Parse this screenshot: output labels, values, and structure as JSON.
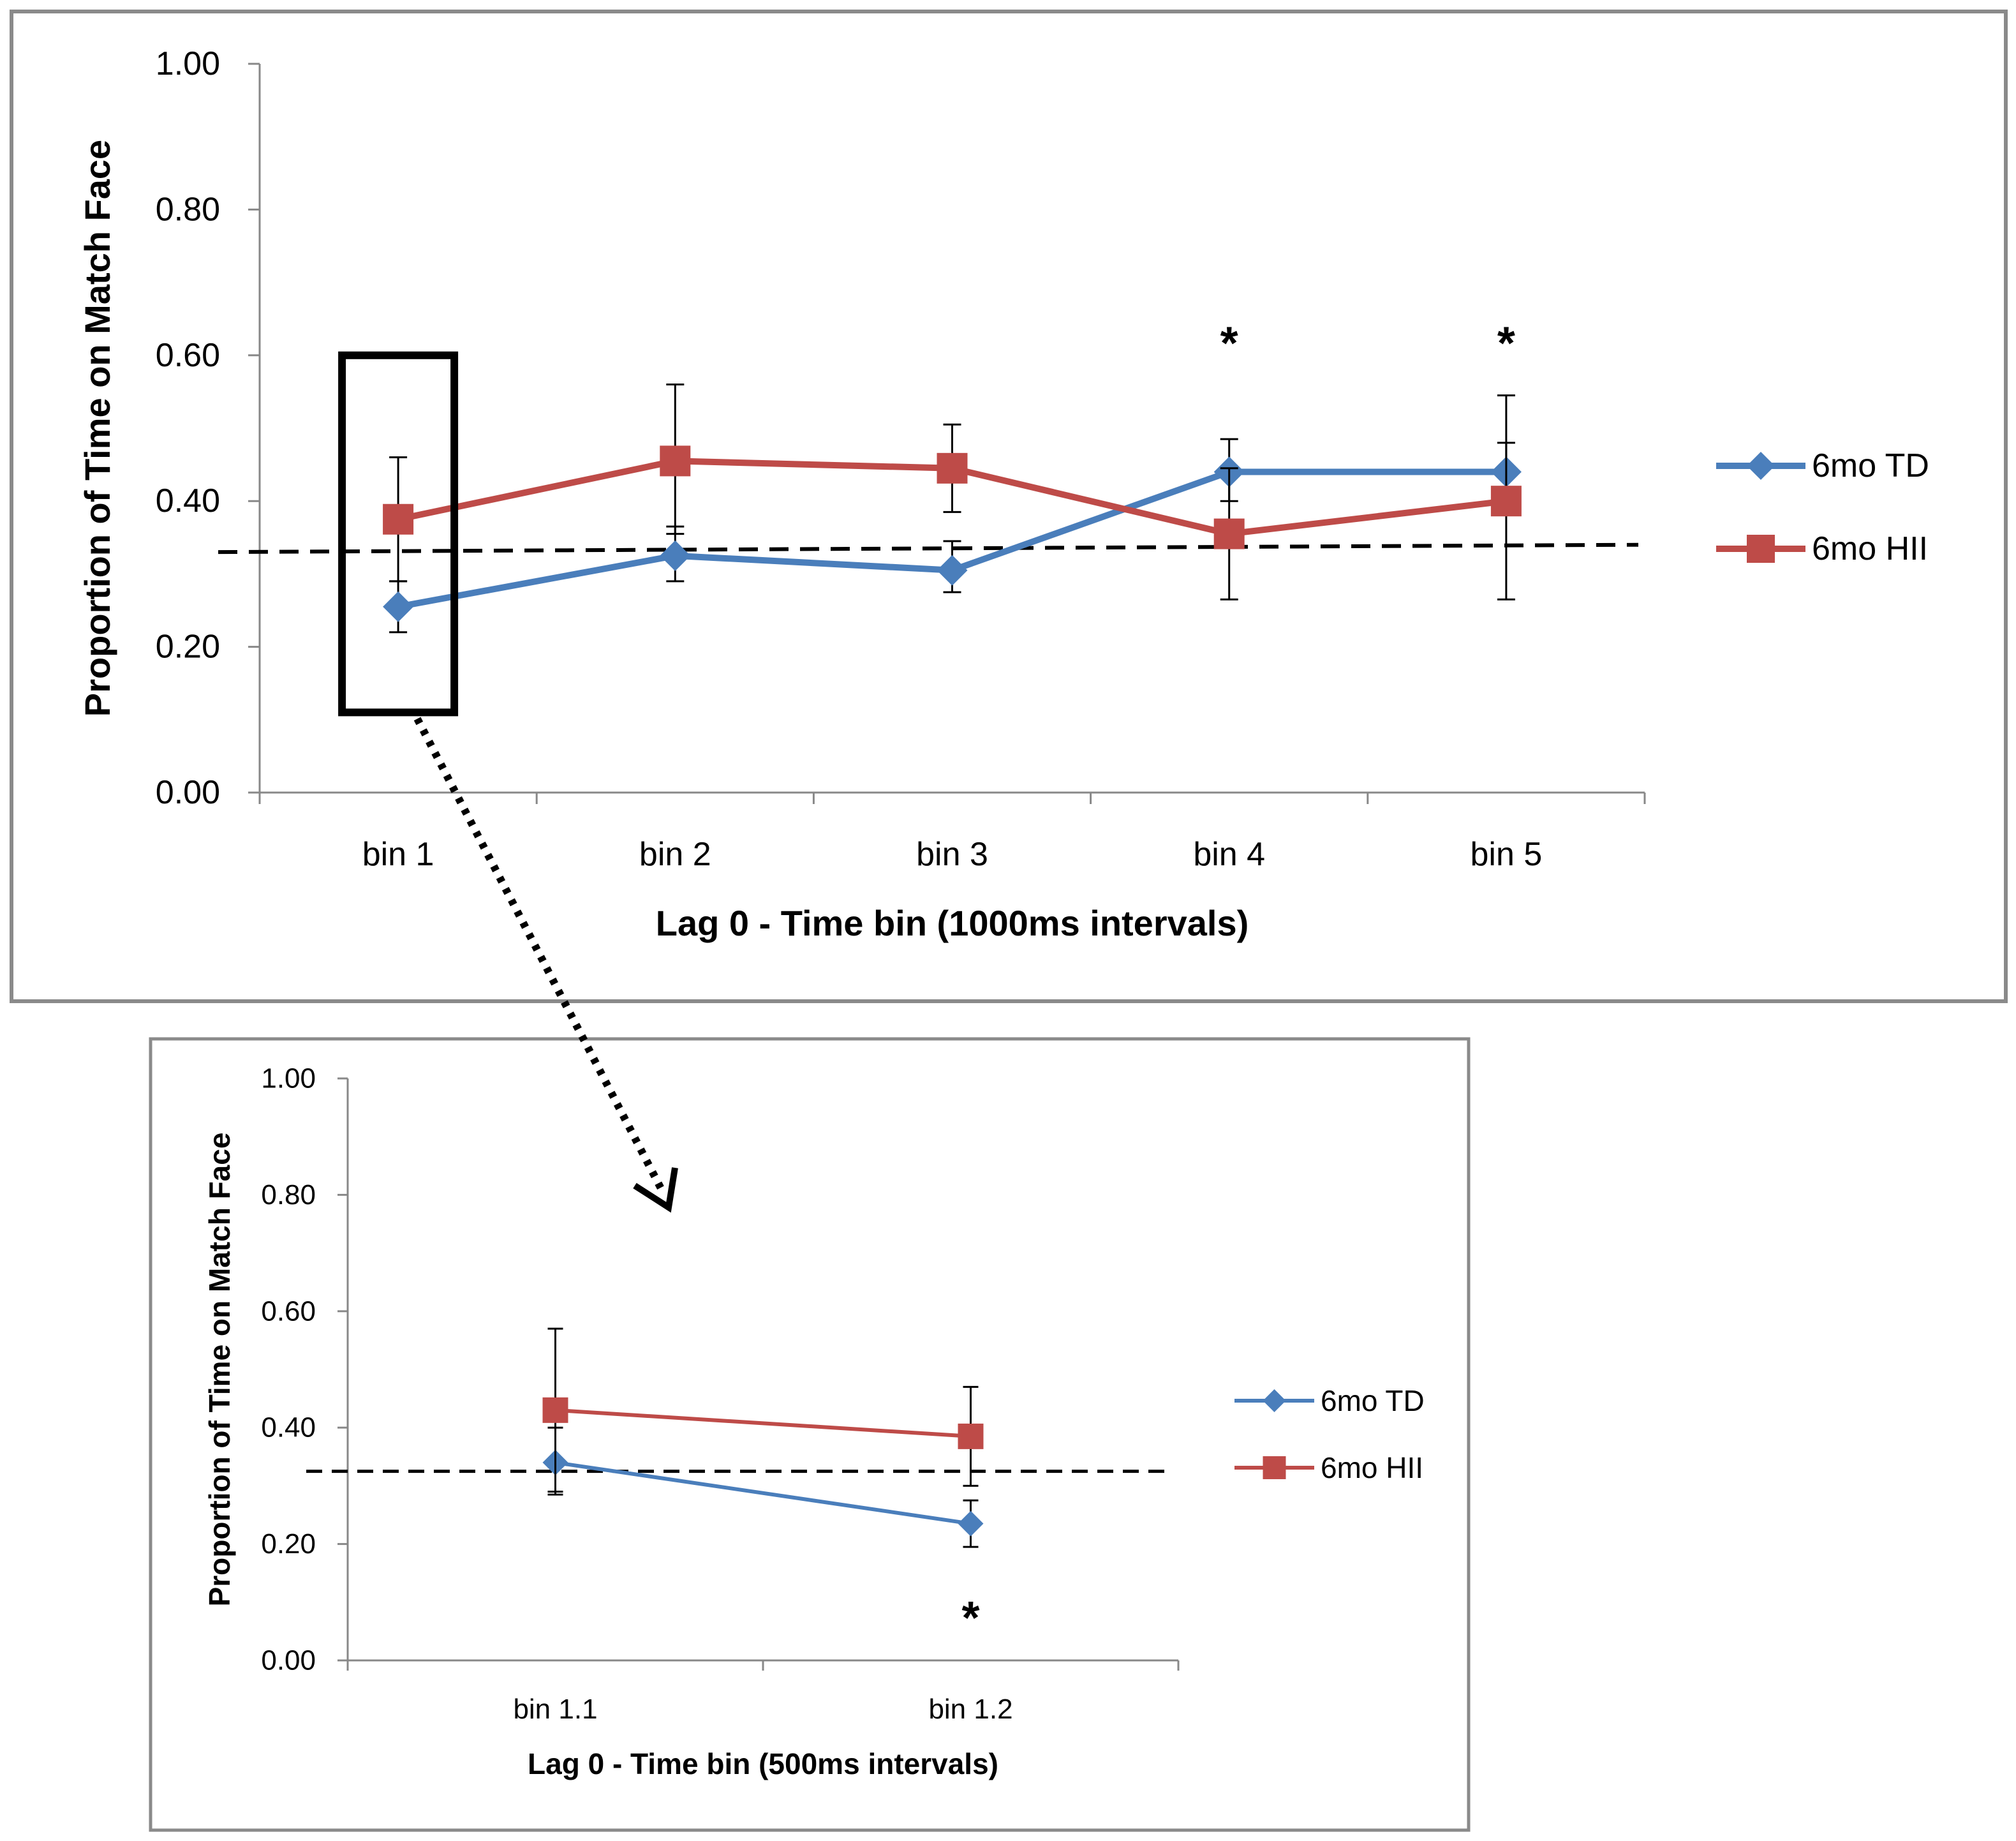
{
  "chart_data": [
    {
      "type": "line",
      "title": "",
      "xlabel": "Lag 0  - Time bin (1000ms intervals)",
      "ylabel": "Proportion of Time on Match Face",
      "ylim": [
        0,
        1
      ],
      "yticks": [
        "0.00",
        "0.20",
        "0.40",
        "0.60",
        "0.80",
        "1.00"
      ],
      "categories": [
        "bin 1",
        "bin 2",
        "bin 3",
        "bin 4",
        "bin 5"
      ],
      "series": [
        {
          "name": "6mo TD",
          "color": "#4a7ebb",
          "marker": "diamond",
          "values": [
            0.255,
            0.325,
            0.305,
            0.44,
            0.44
          ],
          "err_low": [
            0.22,
            0.29,
            0.275,
            0.4,
            0.4
          ],
          "err_high": [
            0.29,
            0.365,
            0.345,
            0.485,
            0.48
          ]
        },
        {
          "name": "6mo HII",
          "color": "#be4b48",
          "marker": "square",
          "values": [
            0.375,
            0.455,
            0.445,
            0.355,
            0.4
          ],
          "err_low": [
            0.29,
            0.355,
            0.385,
            0.265,
            0.265
          ],
          "err_high": [
            0.46,
            0.56,
            0.505,
            0.445,
            0.545
          ]
        }
      ],
      "reference_line": {
        "y_start": 0.33,
        "y_end": 0.34,
        "style": "dashed"
      },
      "annotations": [
        {
          "category": "bin 4",
          "text": "*",
          "y": 0.63
        },
        {
          "category": "bin 5",
          "text": "*",
          "y": 0.63
        }
      ],
      "legend": "right"
    },
    {
      "type": "line",
      "title": "",
      "xlabel": "Lag 0  - Time bin (500ms intervals)",
      "ylabel": "Proportion of Time on Match Face",
      "ylim": [
        0,
        1
      ],
      "yticks": [
        "0.00",
        "0.20",
        "0.40",
        "0.60",
        "0.80",
        "1.00"
      ],
      "categories": [
        "bin 1.1",
        "bin 1.2"
      ],
      "series": [
        {
          "name": "6mo TD",
          "color": "#4a7ebb",
          "marker": "diamond",
          "values": [
            0.34,
            0.235
          ],
          "err_low": [
            0.285,
            0.195
          ],
          "err_high": [
            0.4,
            0.275
          ]
        },
        {
          "name": "6mo HII",
          "color": "#be4b48",
          "marker": "square",
          "values": [
            0.43,
            0.385
          ],
          "err_low": [
            0.29,
            0.3
          ],
          "err_high": [
            0.57,
            0.47
          ]
        }
      ],
      "reference_line": {
        "y_start": 0.325,
        "y_end": 0.325,
        "style": "dashed"
      },
      "annotations": [
        {
          "category": "bin 1.2",
          "text": "*",
          "y": 0.09
        }
      ],
      "legend": "right"
    }
  ]
}
